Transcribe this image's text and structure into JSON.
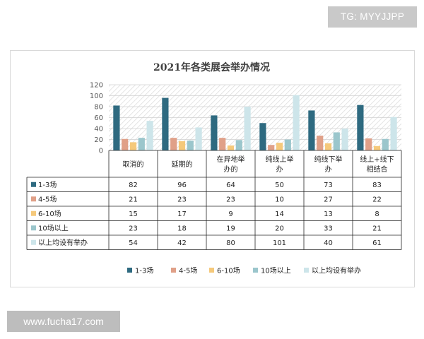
{
  "watermarks": {
    "top": "TG: MYYJJPP",
    "bottom": "www.fucha17.com"
  },
  "chart_data": {
    "type": "bar",
    "title": "2021年各类展会举办情况",
    "categories": [
      "取消的",
      "延期的",
      "在异地举办的",
      "纯线上举办",
      "纯线下举办",
      "线上+线下相结合"
    ],
    "category_lines": [
      [
        "取消的"
      ],
      [
        "延期的"
      ],
      [
        "在异地举",
        "办的"
      ],
      [
        "纯线上举",
        "办"
      ],
      [
        "纯线下举",
        "办"
      ],
      [
        "线上+线下",
        "相结合"
      ]
    ],
    "ylim": [
      0,
      120
    ],
    "yticks": [
      0,
      20,
      40,
      60,
      80,
      100,
      120
    ],
    "grid": true,
    "legend_position": "bottom",
    "series": [
      {
        "name": "1-3场",
        "color": "#2e6a80",
        "values": [
          82,
          96,
          64,
          50,
          73,
          83
        ]
      },
      {
        "name": "4-5场",
        "color": "#e0a088",
        "values": [
          21,
          23,
          23,
          10,
          27,
          22
        ]
      },
      {
        "name": "6-10场",
        "color": "#f5c97b",
        "values": [
          15,
          17,
          9,
          14,
          13,
          8
        ]
      },
      {
        "name": "10场以上",
        "color": "#9bc6cc",
        "values": [
          23,
          18,
          19,
          20,
          33,
          21
        ]
      },
      {
        "name": "以上均设有举办",
        "color": "#cde5ea",
        "values": [
          54,
          42,
          80,
          101,
          40,
          61
        ]
      }
    ]
  }
}
